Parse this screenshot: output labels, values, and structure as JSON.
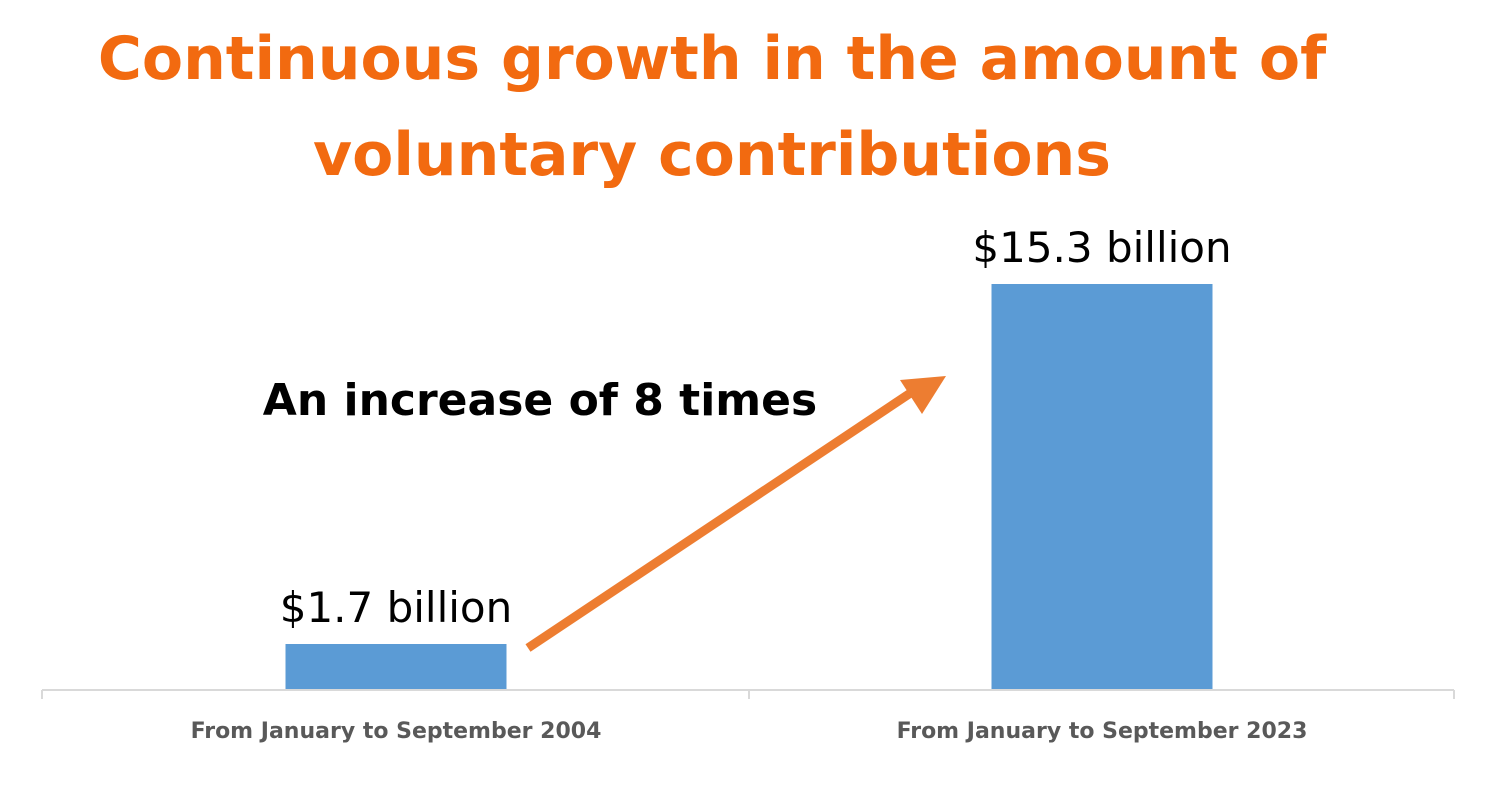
{
  "chart_data": {
    "type": "bar",
    "title": [
      "Continuous growth in the amount of",
      "voluntary contributions"
    ],
    "categories": [
      "From January to September 2004",
      "From January to September 2023"
    ],
    "values": [
      1.7,
      15.3
    ],
    "data_labels": [
      "$1.7 billion",
      "$15.3 billion"
    ],
    "annotation": "An increase of 8 times",
    "xlabel": "",
    "ylabel": "",
    "grid": false,
    "legend": "none"
  },
  "colors": {
    "title": "#f26a10",
    "bar": "#5b9bd5",
    "arrow": "#ed7d31",
    "axis": "#d9d9d9",
    "tick_label": "#595959",
    "data_label": "#000000",
    "annotation": "#000000"
  }
}
